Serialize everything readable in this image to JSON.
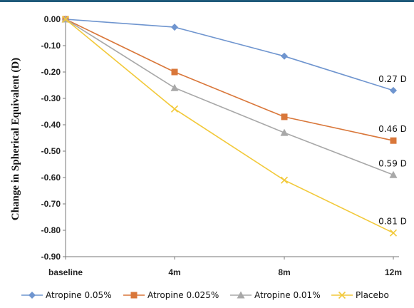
{
  "chart_data": {
    "type": "line",
    "title": "",
    "xlabel": "",
    "ylabel": "Change in Spherical Equivalent (D)",
    "categories": [
      "baseline",
      "4m",
      "8m",
      "12m"
    ],
    "ylim": [
      -0.9,
      0.0
    ],
    "yticks": [
      "0.00",
      "-0.10",
      "-0.20",
      "-0.30",
      "-0.40",
      "-0.50",
      "-0.60",
      "-0.70",
      "-0.80",
      "-0.90"
    ],
    "grid": false,
    "legend_position": "bottom",
    "series": [
      {
        "name": "Atropine 0.05%",
        "values": [
          0.0,
          -0.03,
          -0.14,
          -0.27
        ],
        "color": "#6f95cf",
        "marker": "diamond",
        "end_label": "0.27 D"
      },
      {
        "name": "Atropine 0.025%",
        "values": [
          0.0,
          -0.2,
          -0.37,
          -0.46
        ],
        "color": "#d9773a",
        "marker": "square",
        "end_label": "0.46 D"
      },
      {
        "name": "Atropine 0.01%",
        "values": [
          0.0,
          -0.26,
          -0.43,
          -0.59
        ],
        "color": "#a8a8a8",
        "marker": "triangle",
        "end_label": "0.59 D"
      },
      {
        "name": "Placebo",
        "values": [
          0.0,
          -0.34,
          -0.61,
          -0.81
        ],
        "color": "#f2c93a",
        "marker": "x",
        "end_label": "0.81 D"
      }
    ]
  }
}
